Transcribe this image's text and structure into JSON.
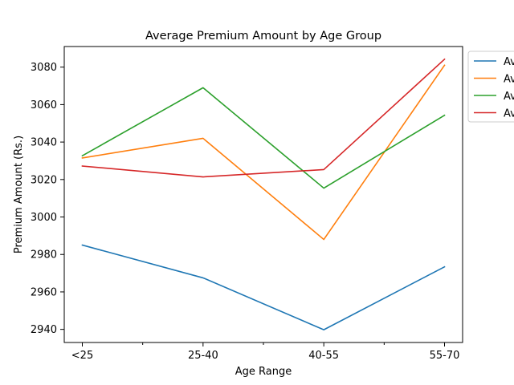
{
  "chart_data": {
    "type": "line",
    "title": "Average Premium Amount by Age Group",
    "xlabel": "Age Range",
    "ylabel": "Premium Amount (Rs.)",
    "categories": [
      "<25",
      "25-40",
      "40-55",
      "55-70"
    ],
    "ylim": [
      2933,
      3091
    ],
    "yticks": [
      2940,
      2960,
      2980,
      3000,
      3020,
      3040,
      3060,
      3080
    ],
    "grid": false,
    "legend_position": "outside-top-right",
    "series": [
      {
        "name": "Av",
        "color": "#1f77b4",
        "values": [
          2985,
          2967.5,
          2939.8,
          2973.4
        ]
      },
      {
        "name": "Av",
        "color": "#ff7f0e",
        "values": [
          3031.5,
          3042,
          2988,
          3081
        ]
      },
      {
        "name": "Av",
        "color": "#2ca02c",
        "values": [
          3032.7,
          3069,
          3015.4,
          3054.3
        ]
      },
      {
        "name": "Av",
        "color": "#d62728",
        "values": [
          3027.2,
          3021.4,
          3025.3,
          3084.2
        ]
      }
    ]
  }
}
